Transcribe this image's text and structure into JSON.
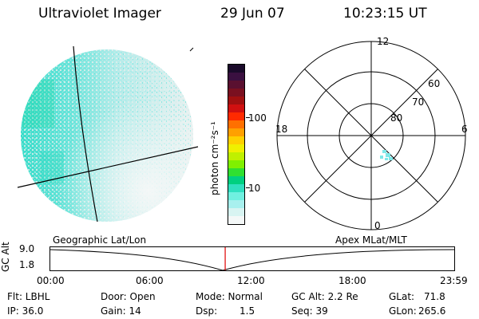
{
  "header": {
    "instrument": "Ultraviolet Imager",
    "date": "29 Jun 07",
    "time": "10:23:15 UT"
  },
  "colorbar": {
    "unit_label": "photon cm⁻²s⁻¹",
    "ticks": [
      "100",
      "10"
    ],
    "colors": [
      "#1a0a2a",
      "#3a1040",
      "#5a1030",
      "#7a1020",
      "#a01010",
      "#d01010",
      "#ff2a00",
      "#ff7000",
      "#ffa000",
      "#ffd000",
      "#f0f000",
      "#c0f000",
      "#80f000",
      "#30e030",
      "#00d080",
      "#30e0c0",
      "#70f0e0",
      "#a8f0ee",
      "#d8f4f2",
      "#f4f8f8"
    ]
  },
  "polar": {
    "labels": {
      "top": "12",
      "bottom": "0",
      "left": "18",
      "right": "6"
    },
    "lat_labels": [
      "60",
      "70",
      "80"
    ]
  },
  "timeline": {
    "left_title": "Geographic Lat/Lon",
    "right_title": "Apex MLat/MLT",
    "y_label": "GC Alt",
    "y_ticks": [
      "9.0",
      "1.8"
    ],
    "x_ticks": [
      "00:00",
      "06:00",
      "12:00",
      "18:00",
      "23:59"
    ],
    "marker_time": "10:23",
    "marker_color": "#e00000"
  },
  "info": {
    "flt": "Flt: LBHL",
    "ip": "IP: 36.0",
    "door": "Door: Open",
    "gain": "Gain: 14",
    "mode": "Mode: Normal",
    "dsp": "Dsp:",
    "dsp_val": "1.5",
    "gc_alt": "GC Alt: 2.2 Re",
    "seq": "Seq: 39",
    "glat": "GLat:",
    "glat_val": "71.8",
    "glon": "GLon:",
    "glon_val": "265.6"
  }
}
